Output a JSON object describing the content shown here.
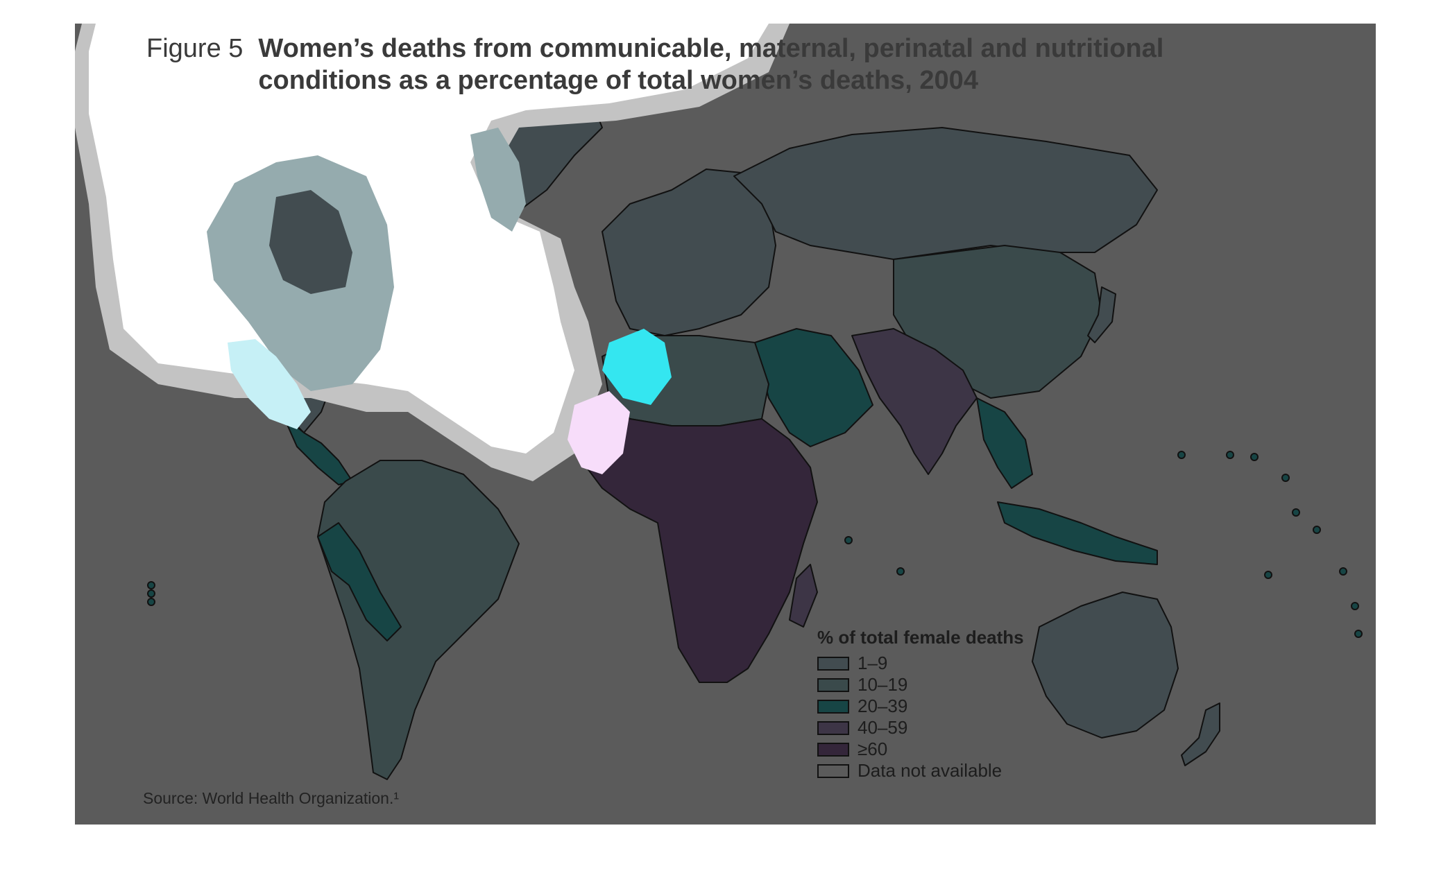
{
  "figure": {
    "label": "Figure 5",
    "title": "Women’s deaths from communicable, maternal, perinatal and nutritional conditions as a percentage of total women’s deaths, 2004",
    "source": "Source: World Health Organization.¹"
  },
  "legend": {
    "title": "% of total female deaths",
    "items": [
      {
        "label": "1–9",
        "color": "#424c50"
      },
      {
        "label": "10–19",
        "color": "#3a4a4b"
      },
      {
        "label": "20–39",
        "color": "#174545"
      },
      {
        "label": "40–59",
        "color": "#3d3546"
      },
      {
        "label": "≥60",
        "color": "#34263a"
      },
      {
        "label": "Data not available",
        "color": "#5b5b5b"
      }
    ]
  },
  "colors": {
    "background": "#5b5b5b",
    "overlay_white": "#ffffff",
    "overlay_grey": "#c3c3c3",
    "overlay_teal": "#95abae",
    "overlay_light_cyan": "#c6f0f6",
    "overlay_cyan": "#34e6f0",
    "overlay_pink": "#f7ddfa"
  }
}
